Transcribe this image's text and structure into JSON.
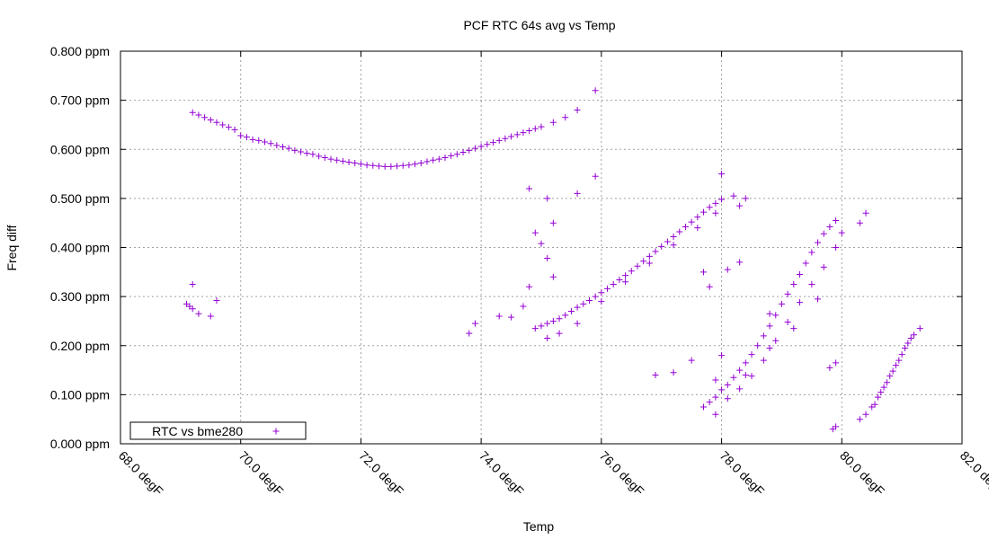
{
  "chart_data": {
    "type": "scatter",
    "title": "PCF RTC 64s avg vs Temp",
    "xlabel": "Temp",
    "ylabel": "Freq diff",
    "xlim": [
      68.0,
      82.0
    ],
    "ylim": [
      0.0,
      0.8
    ],
    "x_ticks": [
      68.0,
      70.0,
      72.0,
      74.0,
      76.0,
      78.0,
      80.0,
      82.0
    ],
    "x_tick_labels": [
      "68.0 degF",
      "70.0 degF",
      "72.0 degF",
      "74.0 degF",
      "76.0 degF",
      "78.0 degF",
      "80.0 degF",
      "82.0 degF"
    ],
    "y_ticks": [
      0.0,
      0.1,
      0.2,
      0.3,
      0.4,
      0.5,
      0.6,
      0.7,
      0.8
    ],
    "y_tick_labels": [
      "0.000 ppm",
      "0.100 ppm",
      "0.200 ppm",
      "0.300 ppm",
      "0.400 ppm",
      "0.500 ppm",
      "0.600 ppm",
      "0.700 ppm",
      "0.800 ppm"
    ],
    "grid": true,
    "legend_position": "bottom-left",
    "series": [
      {
        "name": "RTC vs bme280",
        "color": "#9400d3",
        "marker": "plus",
        "points": [
          [
            69.2,
            0.675
          ],
          [
            69.3,
            0.67
          ],
          [
            69.4,
            0.665
          ],
          [
            69.5,
            0.66
          ],
          [
            69.6,
            0.655
          ],
          [
            69.7,
            0.65
          ],
          [
            69.8,
            0.645
          ],
          [
            69.9,
            0.64
          ],
          [
            70.0,
            0.628
          ],
          [
            70.1,
            0.625
          ],
          [
            70.2,
            0.62
          ],
          [
            70.3,
            0.618
          ],
          [
            70.4,
            0.615
          ],
          [
            70.5,
            0.612
          ],
          [
            70.6,
            0.608
          ],
          [
            70.7,
            0.605
          ],
          [
            70.8,
            0.602
          ],
          [
            70.9,
            0.598
          ],
          [
            71.0,
            0.595
          ],
          [
            71.1,
            0.592
          ],
          [
            71.2,
            0.59
          ],
          [
            71.3,
            0.586
          ],
          [
            71.4,
            0.583
          ],
          [
            71.5,
            0.58
          ],
          [
            71.6,
            0.578
          ],
          [
            71.7,
            0.576
          ],
          [
            71.8,
            0.574
          ],
          [
            71.9,
            0.572
          ],
          [
            72.0,
            0.57
          ],
          [
            72.1,
            0.568
          ],
          [
            72.2,
            0.567
          ],
          [
            72.3,
            0.566
          ],
          [
            72.4,
            0.565
          ],
          [
            72.5,
            0.565
          ],
          [
            72.6,
            0.566
          ],
          [
            72.7,
            0.567
          ],
          [
            72.8,
            0.568
          ],
          [
            72.9,
            0.57
          ],
          [
            73.0,
            0.572
          ],
          [
            73.1,
            0.575
          ],
          [
            73.2,
            0.578
          ],
          [
            73.3,
            0.58
          ],
          [
            73.4,
            0.583
          ],
          [
            73.5,
            0.587
          ],
          [
            73.6,
            0.59
          ],
          [
            73.7,
            0.594
          ],
          [
            73.8,
            0.598
          ],
          [
            73.9,
            0.602
          ],
          [
            74.0,
            0.606
          ],
          [
            74.1,
            0.61
          ],
          [
            74.2,
            0.614
          ],
          [
            74.3,
            0.618
          ],
          [
            74.4,
            0.622
          ],
          [
            74.5,
            0.626
          ],
          [
            74.6,
            0.63
          ],
          [
            74.7,
            0.634
          ],
          [
            74.8,
            0.638
          ],
          [
            74.9,
            0.642
          ],
          [
            75.0,
            0.646
          ],
          [
            75.2,
            0.655
          ],
          [
            75.4,
            0.665
          ],
          [
            75.6,
            0.68
          ],
          [
            75.9,
            0.72
          ],
          [
            69.1,
            0.285
          ],
          [
            69.15,
            0.28
          ],
          [
            69.2,
            0.275
          ],
          [
            69.3,
            0.265
          ],
          [
            69.5,
            0.26
          ],
          [
            69.2,
            0.325
          ],
          [
            69.6,
            0.292
          ],
          [
            74.9,
            0.235
          ],
          [
            75.0,
            0.24
          ],
          [
            75.1,
            0.245
          ],
          [
            75.2,
            0.25
          ],
          [
            75.3,
            0.255
          ],
          [
            75.4,
            0.262
          ],
          [
            75.5,
            0.27
          ],
          [
            75.6,
            0.278
          ],
          [
            75.7,
            0.285
          ],
          [
            75.8,
            0.292
          ],
          [
            75.9,
            0.3
          ],
          [
            76.0,
            0.308
          ],
          [
            76.1,
            0.316
          ],
          [
            76.2,
            0.325
          ],
          [
            76.3,
            0.334
          ],
          [
            76.4,
            0.343
          ],
          [
            76.5,
            0.352
          ],
          [
            76.6,
            0.362
          ],
          [
            76.7,
            0.372
          ],
          [
            76.8,
            0.382
          ],
          [
            76.9,
            0.392
          ],
          [
            77.0,
            0.402
          ],
          [
            77.1,
            0.412
          ],
          [
            77.2,
            0.422
          ],
          [
            77.3,
            0.432
          ],
          [
            77.4,
            0.442
          ],
          [
            77.5,
            0.452
          ],
          [
            77.6,
            0.462
          ],
          [
            77.7,
            0.472
          ],
          [
            77.8,
            0.482
          ],
          [
            77.9,
            0.49
          ],
          [
            78.0,
            0.498
          ],
          [
            78.2,
            0.505
          ],
          [
            78.4,
            0.5
          ],
          [
            78.0,
            0.55
          ],
          [
            76.0,
            0.29
          ],
          [
            76.4,
            0.33
          ],
          [
            76.8,
            0.368
          ],
          [
            77.2,
            0.405
          ],
          [
            77.6,
            0.44
          ],
          [
            77.9,
            0.47
          ],
          [
            78.3,
            0.485
          ],
          [
            75.3,
            0.225
          ],
          [
            75.1,
            0.215
          ],
          [
            75.6,
            0.245
          ],
          [
            74.7,
            0.28
          ],
          [
            74.5,
            0.258
          ],
          [
            74.3,
            0.26
          ],
          [
            73.8,
            0.225
          ],
          [
            73.9,
            0.245
          ],
          [
            74.8,
            0.32
          ],
          [
            75.1,
            0.378
          ],
          [
            75.2,
            0.34
          ],
          [
            75.0,
            0.408
          ],
          [
            74.9,
            0.43
          ],
          [
            75.2,
            0.45
          ],
          [
            75.1,
            0.5
          ],
          [
            75.6,
            0.51
          ],
          [
            75.9,
            0.545
          ],
          [
            74.8,
            0.52
          ],
          [
            76.9,
            0.14
          ],
          [
            77.2,
            0.145
          ],
          [
            77.5,
            0.17
          ],
          [
            77.7,
            0.35
          ],
          [
            77.8,
            0.32
          ],
          [
            78.3,
            0.37
          ],
          [
            78.1,
            0.355
          ],
          [
            77.7,
            0.075
          ],
          [
            77.8,
            0.085
          ],
          [
            77.9,
            0.095
          ],
          [
            78.0,
            0.11
          ],
          [
            78.1,
            0.12
          ],
          [
            78.2,
            0.135
          ],
          [
            78.3,
            0.15
          ],
          [
            78.4,
            0.165
          ],
          [
            78.5,
            0.182
          ],
          [
            78.6,
            0.2
          ],
          [
            78.7,
            0.22
          ],
          [
            78.8,
            0.24
          ],
          [
            78.9,
            0.262
          ],
          [
            79.0,
            0.285
          ],
          [
            79.1,
            0.305
          ],
          [
            79.2,
            0.325
          ],
          [
            79.3,
            0.345
          ],
          [
            79.4,
            0.368
          ],
          [
            79.5,
            0.39
          ],
          [
            79.6,
            0.41
          ],
          [
            79.7,
            0.428
          ],
          [
            79.8,
            0.442
          ],
          [
            79.9,
            0.455
          ],
          [
            78.1,
            0.092
          ],
          [
            78.3,
            0.112
          ],
          [
            78.5,
            0.138
          ],
          [
            78.7,
            0.17
          ],
          [
            78.9,
            0.21
          ],
          [
            79.1,
            0.248
          ],
          [
            79.3,
            0.288
          ],
          [
            79.5,
            0.325
          ],
          [
            79.7,
            0.36
          ],
          [
            79.9,
            0.4
          ],
          [
            80.0,
            0.43
          ],
          [
            77.9,
            0.13
          ],
          [
            78.4,
            0.14
          ],
          [
            78.8,
            0.195
          ],
          [
            79.2,
            0.235
          ],
          [
            79.6,
            0.295
          ],
          [
            79.8,
            0.155
          ],
          [
            79.9,
            0.165
          ],
          [
            80.3,
            0.45
          ],
          [
            80.4,
            0.47
          ],
          [
            79.9,
            0.035
          ],
          [
            79.85,
            0.03
          ],
          [
            78.0,
            0.18
          ],
          [
            78.8,
            0.265
          ],
          [
            77.9,
            0.06
          ],
          [
            80.3,
            0.05
          ],
          [
            80.4,
            0.06
          ],
          [
            80.5,
            0.075
          ],
          [
            80.6,
            0.095
          ],
          [
            80.7,
            0.115
          ],
          [
            80.8,
            0.138
          ],
          [
            80.9,
            0.16
          ],
          [
            81.0,
            0.182
          ],
          [
            81.1,
            0.205
          ],
          [
            81.2,
            0.222
          ],
          [
            81.3,
            0.235
          ],
          [
            80.55,
            0.08
          ],
          [
            80.75,
            0.125
          ],
          [
            80.95,
            0.17
          ],
          [
            81.05,
            0.195
          ],
          [
            80.65,
            0.105
          ],
          [
            80.85,
            0.148
          ],
          [
            81.15,
            0.215
          ]
        ]
      }
    ]
  }
}
